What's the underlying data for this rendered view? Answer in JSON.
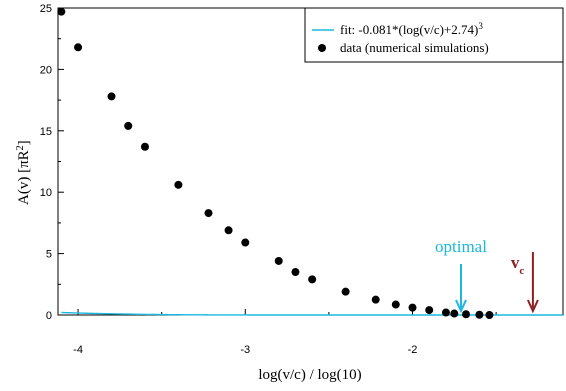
{
  "chart_data": {
    "type": "scatter",
    "xlabel": "log(v/c) / log(10)",
    "ylabel_main": "A(v)  [πR",
    "ylabel_sup": "2",
    "ylabel_close": "]",
    "xlim": [
      -4.12,
      -1.1
    ],
    "ylim": [
      0,
      25
    ],
    "x_ticks": [
      -4,
      -3,
      -2
    ],
    "x_tick_labels": [
      "-4",
      "-3",
      "-2"
    ],
    "y_ticks": [
      0,
      5,
      10,
      15,
      20,
      25
    ],
    "y_tick_labels": [
      "0",
      "5",
      "10",
      "15",
      "20",
      "25"
    ],
    "grid": false,
    "legend_position": "top-right",
    "series": [
      {
        "name": "fit: -0.081*(log(v/c)+2.74)",
        "name_sup": "3",
        "kind": "line",
        "color": "#1ab8e0",
        "coef": -0.081,
        "shift": 2.74,
        "x_from": -4.1,
        "x_to": -1.1
      },
      {
        "name": "data (numerical simulations)",
        "kind": "scatter",
        "color": "#000000",
        "x": [
          -4.1,
          -4.0,
          -3.8,
          -3.7,
          -3.6,
          -3.4,
          -3.22,
          -3.1,
          -3.0,
          -2.8,
          -2.7,
          -2.6,
          -2.4,
          -2.22,
          -2.1,
          -2.0,
          -1.9,
          -1.8,
          -1.75,
          -1.68,
          -1.6,
          -1.54
        ],
        "y": [
          24.7,
          21.8,
          17.8,
          15.4,
          13.7,
          10.6,
          8.3,
          6.9,
          5.9,
          4.4,
          3.5,
          2.9,
          1.9,
          1.25,
          0.85,
          0.6,
          0.4,
          0.2,
          0.12,
          0.06,
          0.02,
          0.0
        ]
      }
    ],
    "annotations": [
      {
        "text": "optimal",
        "x": -1.71,
        "color": "#1ab8e0"
      },
      {
        "text": "v",
        "sub": "c",
        "x": -1.28,
        "color": "#8b2020"
      }
    ]
  }
}
